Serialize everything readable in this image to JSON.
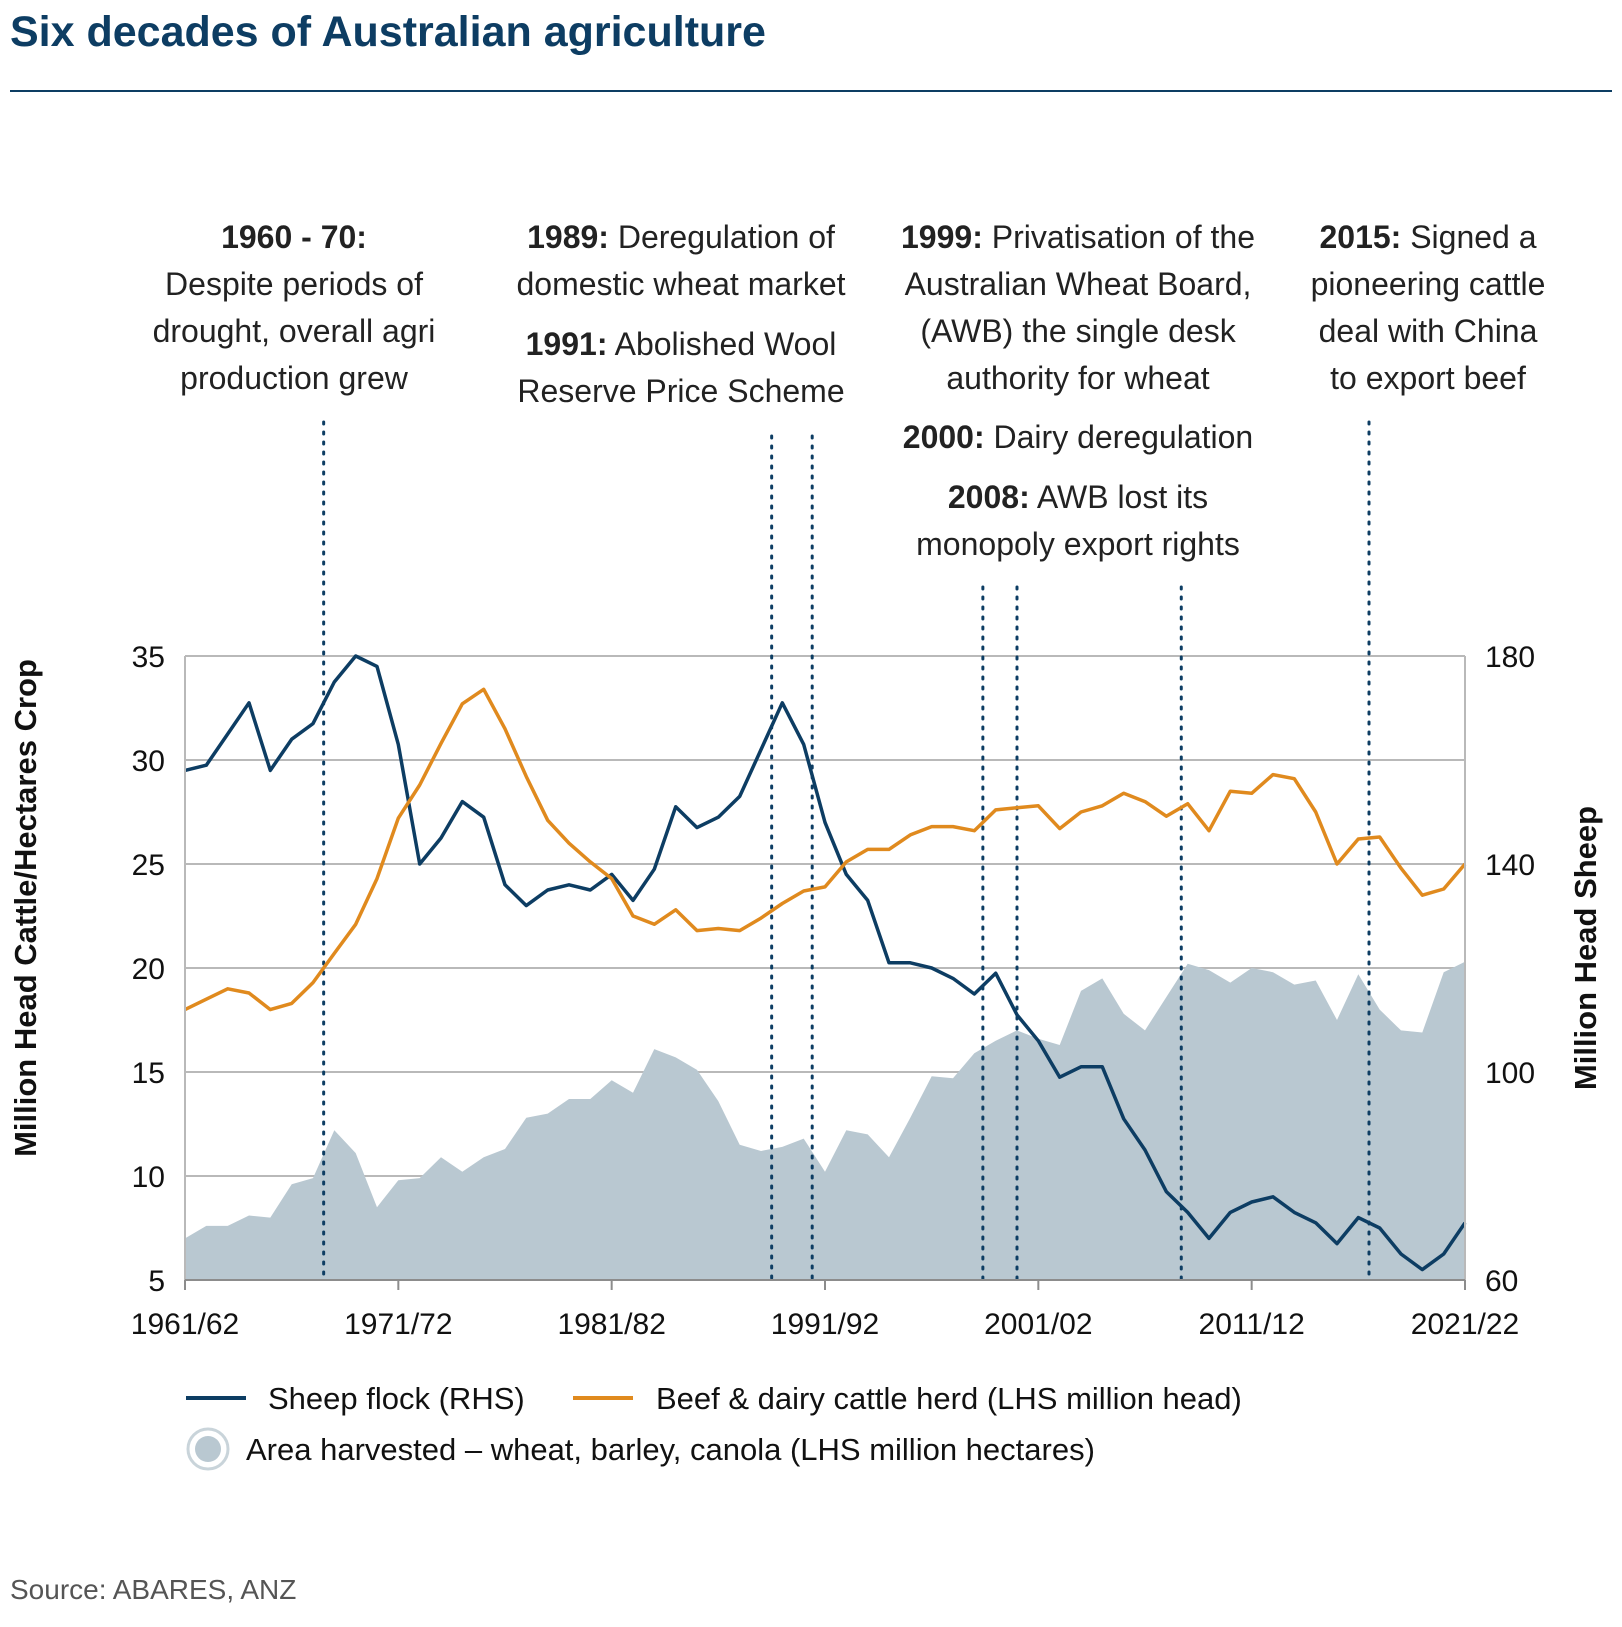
{
  "title": "Six decades of Australian agriculture",
  "source": "Source: ABARES, ANZ",
  "annotations": [
    {
      "lines": [
        {
          "bold": "1960 - 70:",
          "text": ""
        },
        {
          "bold": "",
          "text": "Despite periods of"
        },
        {
          "bold": "",
          "text": "drought, overall agri"
        },
        {
          "bold": "",
          "text": "production grew"
        }
      ]
    },
    {
      "lines": [
        {
          "bold": "1989:",
          "text": " Deregulation of"
        },
        {
          "bold": "",
          "text": "domestic wheat market"
        },
        {
          "bold": "1991:",
          "text": " Abolished Wool"
        },
        {
          "bold": "",
          "text": "Reserve Price Scheme"
        }
      ]
    },
    {
      "lines": [
        {
          "bold": "1999:",
          "text": " Privatisation of the"
        },
        {
          "bold": "",
          "text": "Australian Wheat Board,"
        },
        {
          "bold": "",
          "text": "(AWB) the single desk"
        },
        {
          "bold": "",
          "text": "authority for wheat"
        },
        {
          "bold": "2000:",
          "text": " Dairy deregulation"
        },
        {
          "bold": "2008:",
          "text": " AWB lost its"
        },
        {
          "bold": "",
          "text": "monopoly export rights"
        }
      ]
    },
    {
      "lines": [
        {
          "bold": "2015:",
          "text": " Signed a"
        },
        {
          "bold": "",
          "text": "pioneering cattle"
        },
        {
          "bold": "",
          "text": "deal with China"
        },
        {
          "bold": "",
          "text": "to export beef"
        }
      ]
    }
  ],
  "chart_data": {
    "type": "line",
    "title": "Six decades of Australian agriculture",
    "x_ticks": [
      "1961/62",
      "1971/72",
      "1981/82",
      "1991/92",
      "2001/02",
      "2011/12",
      "2021/22"
    ],
    "x_start_year": 1961,
    "x_end_year": 2021,
    "ylabel_left": "Million Head Cattle/Hectares Crop",
    "ylabel_right": "Million Head Sheep",
    "ylim_left": [
      5,
      35
    ],
    "yticks_left": [
      5,
      10,
      15,
      20,
      25,
      30,
      35
    ],
    "ylim_right": [
      60,
      180
    ],
    "yticks_right": [
      60,
      100,
      140,
      180
    ],
    "grid": true,
    "event_years": [
      1967.5,
      1988.5,
      1990.4,
      1998.4,
      2000,
      2007.7,
      2016.5
    ],
    "series": [
      {
        "name": "Sheep flock (RHS)",
        "axis": "right",
        "kind": "line",
        "color": "#0d3d63",
        "values": [
          158,
          159,
          165,
          171,
          158,
          164,
          167,
          175,
          180,
          178,
          163,
          140,
          145,
          152,
          149,
          136,
          132,
          135,
          136,
          135,
          138,
          133,
          139,
          151,
          147,
          149,
          153,
          162,
          171,
          163,
          148,
          138,
          133,
          121,
          121,
          120,
          118,
          115,
          119,
          111,
          106,
          99,
          101,
          101,
          91,
          85,
          77,
          73,
          68,
          73,
          75,
          76,
          73,
          71,
          67,
          72,
          70,
          65,
          62,
          65,
          71
        ]
      },
      {
        "name": "Beef & dairy cattle herd (LHS million head)",
        "axis": "left",
        "kind": "line",
        "color": "#e08a1e",
        "values": [
          18.0,
          18.5,
          19.0,
          18.8,
          18.0,
          18.3,
          19.3,
          20.7,
          22.1,
          24.3,
          27.2,
          28.8,
          30.8,
          32.7,
          33.4,
          31.5,
          29.2,
          27.1,
          26.0,
          25.1,
          24.3,
          22.5,
          22.1,
          22.8,
          21.8,
          21.9,
          21.8,
          22.4,
          23.1,
          23.7,
          23.9,
          25.1,
          25.7,
          25.7,
          26.4,
          26.8,
          26.8,
          26.6,
          27.6,
          27.7,
          27.8,
          26.7,
          27.5,
          27.8,
          28.4,
          28.0,
          27.3,
          27.9,
          26.6,
          28.5,
          28.4,
          29.3,
          29.1,
          27.5,
          25.0,
          26.2,
          26.3,
          24.8,
          23.5,
          23.8,
          25.0
        ]
      },
      {
        "name": "Area harvested – wheat, barley, canola (LHS million hectares)",
        "axis": "left",
        "kind": "area",
        "color": "#b9c8d1",
        "values": [
          7.0,
          7.6,
          7.6,
          8.1,
          8.0,
          9.6,
          9.9,
          12.2,
          11.1,
          8.5,
          9.8,
          9.9,
          10.9,
          10.2,
          10.9,
          11.3,
          12.8,
          13.0,
          13.7,
          13.7,
          14.6,
          14.0,
          16.1,
          15.7,
          15.1,
          13.6,
          11.5,
          11.2,
          11.4,
          11.8,
          10.2,
          12.2,
          12.0,
          10.9,
          12.8,
          14.8,
          14.7,
          15.9,
          16.5,
          17.0,
          16.6,
          16.3,
          18.9,
          19.5,
          17.8,
          17.0,
          18.6,
          20.2,
          19.9,
          19.3,
          20.0,
          19.8,
          19.2,
          19.4,
          17.5,
          19.7,
          18.0,
          17.0,
          16.9,
          19.8,
          20.3
        ]
      }
    ],
    "legend": [
      {
        "label": "Sheep flock (RHS)",
        "marker": "line",
        "color": "#0d3d63"
      },
      {
        "label": "Beef & dairy cattle herd (LHS million head)",
        "marker": "line",
        "color": "#e08a1e"
      },
      {
        "label": "Area harvested – wheat, barley, canola (LHS million hectares)",
        "marker": "circle",
        "color": "#b9c8d1"
      }
    ]
  }
}
